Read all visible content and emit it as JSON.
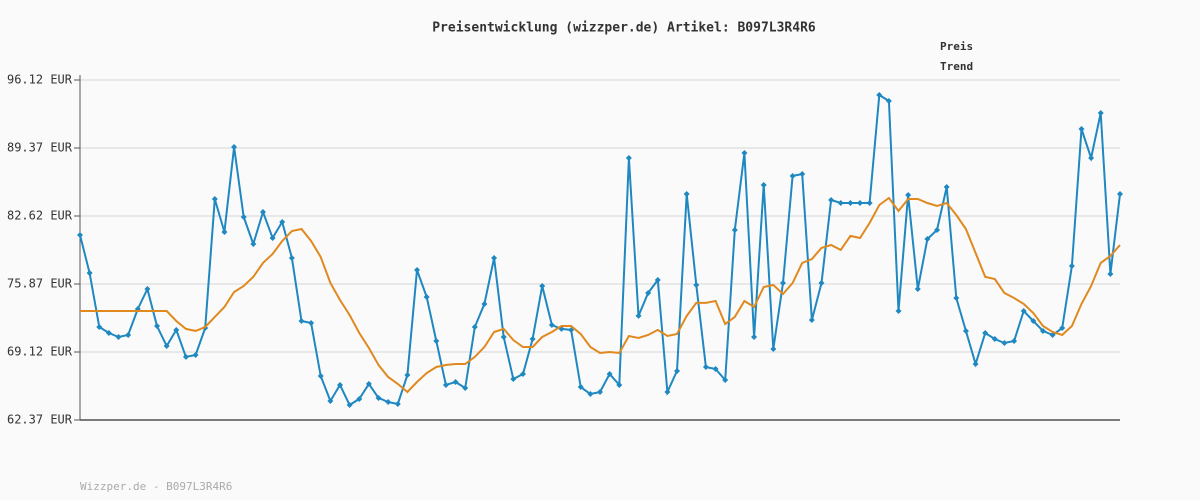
{
  "chart_data": {
    "type": "line",
    "title": "Preisentwicklung (wizzper.de) Artikel: B097L3R4R6",
    "footer": "Wizzper.de - B097L3R4R6",
    "ylim": [
      62.37,
      96.12
    ],
    "yticks": [
      {
        "value": 62.37,
        "label": "62.37 EUR"
      },
      {
        "value": 69.12,
        "label": "69.12 EUR"
      },
      {
        "value": 75.87,
        "label": "75.87 EUR"
      },
      {
        "value": 82.62,
        "label": "82.62 EUR"
      },
      {
        "value": 89.37,
        "label": "89.37 EUR"
      },
      {
        "value": 96.12,
        "label": "96.12 EUR"
      }
    ],
    "grid": true,
    "legend": "top-right",
    "series": [
      {
        "name": "Preis",
        "color": "#1f88c0",
        "markers": true,
        "values": [
          80.73,
          76.96,
          71.6,
          71.01,
          70.61,
          70.81,
          73.39,
          75.37,
          71.7,
          69.72,
          71.31,
          68.63,
          68.82,
          71.5,
          84.31,
          81.03,
          89.47,
          82.52,
          79.84,
          83.02,
          80.44,
          82.03,
          78.45,
          72.2,
          72.0,
          66.74,
          64.26,
          65.85,
          63.86,
          64.46,
          65.95,
          64.56,
          64.16,
          63.96,
          66.84,
          77.26,
          74.58,
          70.21,
          65.85,
          66.14,
          65.55,
          71.6,
          73.89,
          78.45,
          70.61,
          66.44,
          66.94,
          70.41,
          75.67,
          71.8,
          71.41,
          71.31,
          65.65,
          64.95,
          65.15,
          66.94,
          65.85,
          88.38,
          72.7,
          74.98,
          76.27,
          65.15,
          67.24,
          84.8,
          75.77,
          67.63,
          67.43,
          66.34,
          81.23,
          88.87,
          70.61,
          85.7,
          69.42,
          75.97,
          86.59,
          86.79,
          72.3,
          75.97,
          84.21,
          83.91,
          83.91,
          83.91,
          83.91,
          94.63,
          94.04,
          73.19,
          84.7,
          75.37,
          80.34,
          81.23,
          85.5,
          74.48,
          71.21,
          67.93,
          71.01,
          70.41,
          70.01,
          70.21,
          73.19,
          72.2,
          71.21,
          70.81,
          71.5,
          77.66,
          91.26,
          88.38,
          92.84,
          76.86,
          84.8
        ]
      },
      {
        "name": "Trend",
        "color": "#e0891f",
        "markers": false,
        "values": [
          73.19,
          73.19,
          73.19,
          73.19,
          73.19,
          73.19,
          73.19,
          73.19,
          73.19,
          73.19,
          72.2,
          71.41,
          71.21,
          71.6,
          72.6,
          73.59,
          75.08,
          75.67,
          76.57,
          77.96,
          78.85,
          80.14,
          81.13,
          81.33,
          80.14,
          78.55,
          75.97,
          74.28,
          72.79,
          71.01,
          69.52,
          67.83,
          66.64,
          65.95,
          65.15,
          66.14,
          67.04,
          67.63,
          67.83,
          67.93,
          67.93,
          68.63,
          69.62,
          71.11,
          71.41,
          70.31,
          69.62,
          69.62,
          70.61,
          71.11,
          71.7,
          71.7,
          70.91,
          69.62,
          69.02,
          69.12,
          69.02,
          70.71,
          70.51,
          70.81,
          71.31,
          70.71,
          70.91,
          72.7,
          73.99,
          73.99,
          74.18,
          71.9,
          72.6,
          74.18,
          73.59,
          75.57,
          75.77,
          74.88,
          75.97,
          77.96,
          78.35,
          79.45,
          79.74,
          79.25,
          80.64,
          80.44,
          81.93,
          83.71,
          84.41,
          83.12,
          84.31,
          84.31,
          83.91,
          83.61,
          83.91,
          82.72,
          81.33,
          78.95,
          76.57,
          76.37,
          74.98,
          74.48,
          73.89,
          72.99,
          71.7,
          71.11,
          70.81,
          71.7,
          73.89,
          75.67,
          77.96,
          78.65,
          79.74
        ]
      }
    ]
  }
}
